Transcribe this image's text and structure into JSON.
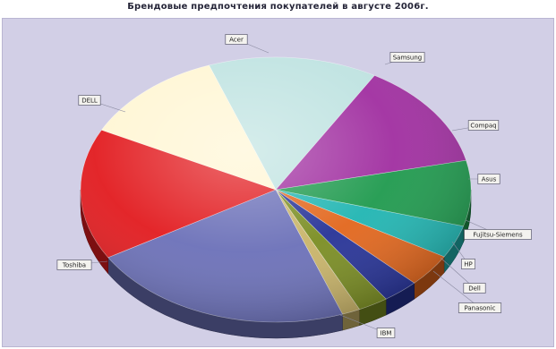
{
  "chart_data": {
    "type": "pie",
    "title": "Брендовые предпочтения покупателей в августе 2006г.",
    "three_d": true,
    "legend": "none",
    "slices": [
      {
        "label": "Acer",
        "value": 14,
        "color": "#bfe3e1"
      },
      {
        "label": "Samsung",
        "value": 13,
        "color": "#a02ea0"
      },
      {
        "label": "Compaq",
        "value": 8,
        "color": "#1f9a4e"
      },
      {
        "label": "Asus",
        "value": 4,
        "color": "#20b5b2"
      },
      {
        "label": "Fujitsu-Siemens",
        "value": 4,
        "color": "#e2661c"
      },
      {
        "label": "HP",
        "value": 3,
        "color": "#263297"
      },
      {
        "label": "Dell",
        "value": 2.5,
        "color": "#7a8d22"
      },
      {
        "label": "Panasonic",
        "value": 1.5,
        "color": "#c9b469"
      },
      {
        "label": "IBM",
        "value": 22,
        "color": "#6b70b8"
      },
      {
        "label": "Toshiba",
        "value": 16,
        "color": "#e21b1f"
      },
      {
        "label": "DELL",
        "value": 12,
        "color": "#fff6d4"
      }
    ]
  }
}
